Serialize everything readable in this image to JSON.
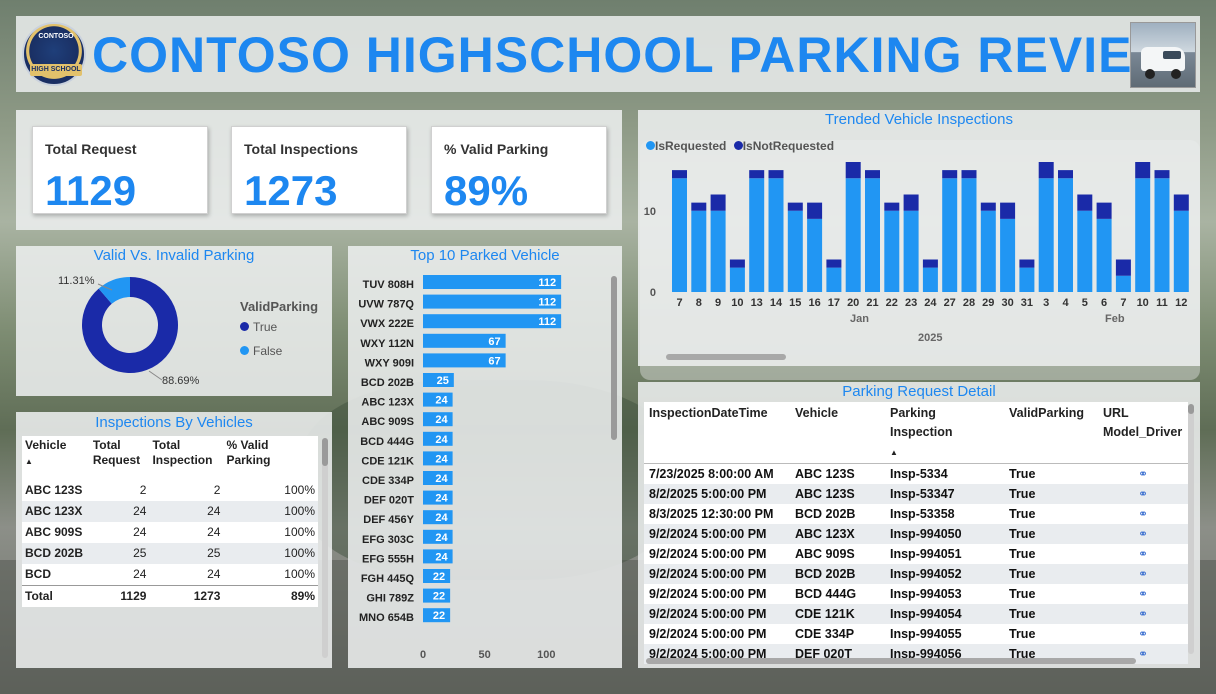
{
  "header": {
    "title": "CONTOSO HIGHSCHOOL PARKING REVIEW",
    "logo_text_top": "CONTOSO",
    "logo_text_mid": "HIGH SCHOOL"
  },
  "kpis": [
    {
      "label": "Total Request",
      "value": "1129"
    },
    {
      "label": "Total Inspections",
      "value": "1273"
    },
    {
      "label": "% Valid Parking",
      "value": "89%"
    }
  ],
  "donut": {
    "title": "Valid Vs. Invalid Parking",
    "legend_title": "ValidParking",
    "legend": [
      {
        "label": "True",
        "color": "#1a2aa8"
      },
      {
        "label": "False",
        "color": "#2196f3"
      }
    ],
    "label_small": "11.31%",
    "label_large": "88.69%"
  },
  "top10": {
    "title": "Top 10 Parked Vehicle",
    "x_ticks": [
      "0",
      "50",
      "100"
    ]
  },
  "ibv": {
    "title": "Inspections By Vehicles",
    "columns": [
      "Vehicle",
      "Total Request",
      "Total Inspection",
      "% Valid Parking"
    ],
    "rows": [
      [
        "ABC 123S",
        "2",
        "2",
        "100%"
      ],
      [
        "ABC 123X",
        "24",
        "24",
        "100%"
      ],
      [
        "ABC 909S",
        "24",
        "24",
        "100%"
      ],
      [
        "BCD 202B",
        "25",
        "25",
        "100%"
      ],
      [
        "BCD",
        "24",
        "24",
        "100%"
      ]
    ],
    "total": [
      "Total",
      "1129",
      "1273",
      "89%"
    ]
  },
  "trend": {
    "title": "Trended Vehicle Inspections",
    "legend": [
      {
        "label": "IsRequested",
        "color": "#2196f3"
      },
      {
        "label": "IsNotRequested",
        "color": "#1a2aa8"
      }
    ],
    "y_ticks": [
      "10",
      "0"
    ],
    "month_labels": [
      "Jan",
      "Feb"
    ],
    "year_label": "2025"
  },
  "detail": {
    "title": "Parking Request Detail",
    "columns": [
      "InspectionDateTime",
      "Vehicle",
      "Parking Inspection",
      "ValidParking",
      "URL Model_Driver"
    ],
    "rows": [
      [
        "7/23/2025 8:00:00 AM",
        "ABC 123S",
        "Insp-5334",
        "True"
      ],
      [
        "8/2/2025 5:00:00 PM",
        "ABC 123S",
        "Insp-53347",
        "True"
      ],
      [
        "8/3/2025 12:30:00 PM",
        "BCD 202B",
        "Insp-53358",
        "True"
      ],
      [
        "9/2/2024 5:00:00 PM",
        "ABC 123X",
        "Insp-994050",
        "True"
      ],
      [
        "9/2/2024 5:00:00 PM",
        "ABC 909S",
        "Insp-994051",
        "True"
      ],
      [
        "9/2/2024 5:00:00 PM",
        "BCD 202B",
        "Insp-994052",
        "True"
      ],
      [
        "9/2/2024 5:00:00 PM",
        "BCD 444G",
        "Insp-994053",
        "True"
      ],
      [
        "9/2/2024 5:00:00 PM",
        "CDE 121K",
        "Insp-994054",
        "True"
      ],
      [
        "9/2/2024 5:00:00 PM",
        "CDE 334P",
        "Insp-994055",
        "True"
      ],
      [
        "9/2/2024 5:00:00 PM",
        "DEF 020T",
        "Insp-994056",
        "True"
      ]
    ]
  },
  "chart_data": [
    {
      "type": "pie",
      "title": "Valid Vs. Invalid Parking",
      "categories": [
        "True",
        "False"
      ],
      "values": [
        88.69,
        11.31
      ],
      "colors": [
        "#1a2aa8",
        "#2196f3"
      ],
      "legend": "right"
    },
    {
      "type": "bar",
      "orientation": "horizontal",
      "title": "Top 10 Parked Vehicle",
      "categories": [
        "TUV 808H",
        "UVW 787Q",
        "VWX 222E",
        "WXY 112N",
        "WXY 909I",
        "BCD 202B",
        "ABC 123X",
        "ABC 909S",
        "BCD 444G",
        "CDE 121K",
        "CDE 334P",
        "DEF 020T",
        "DEF 456Y",
        "EFG 303C",
        "EFG 555H",
        "FGH 445Q",
        "GHI 789Z",
        "MNO 654B"
      ],
      "values": [
        112,
        112,
        112,
        67,
        67,
        25,
        24,
        24,
        24,
        24,
        24,
        24,
        24,
        24,
        24,
        22,
        22,
        22
      ],
      "xlim": [
        0,
        120
      ],
      "color": "#2196f3"
    },
    {
      "type": "bar",
      "stacked": true,
      "title": "Trended Vehicle Inspections",
      "categories": [
        "7",
        "8",
        "9",
        "10",
        "13",
        "14",
        "15",
        "16",
        "17",
        "20",
        "21",
        "22",
        "23",
        "24",
        "27",
        "28",
        "29",
        "30",
        "31",
        "3",
        "4",
        "5",
        "6",
        "7",
        "10",
        "11",
        "12"
      ],
      "series": [
        {
          "name": "IsRequested",
          "values": [
            14,
            10,
            10,
            3,
            14,
            14,
            10,
            9,
            3,
            14,
            14,
            10,
            10,
            3,
            14,
            14,
            10,
            9,
            3,
            14,
            14,
            10,
            9,
            2,
            14,
            14,
            10
          ]
        },
        {
          "name": "IsNotRequested",
          "values": [
            1,
            1,
            2,
            1,
            1,
            1,
            1,
            2,
            1,
            2,
            1,
            1,
            2,
            1,
            1,
            1,
            1,
            2,
            1,
            2,
            1,
            2,
            2,
            2,
            2,
            1,
            2
          ]
        }
      ],
      "ylim": [
        0,
        16
      ],
      "legend": "top-left"
    }
  ]
}
